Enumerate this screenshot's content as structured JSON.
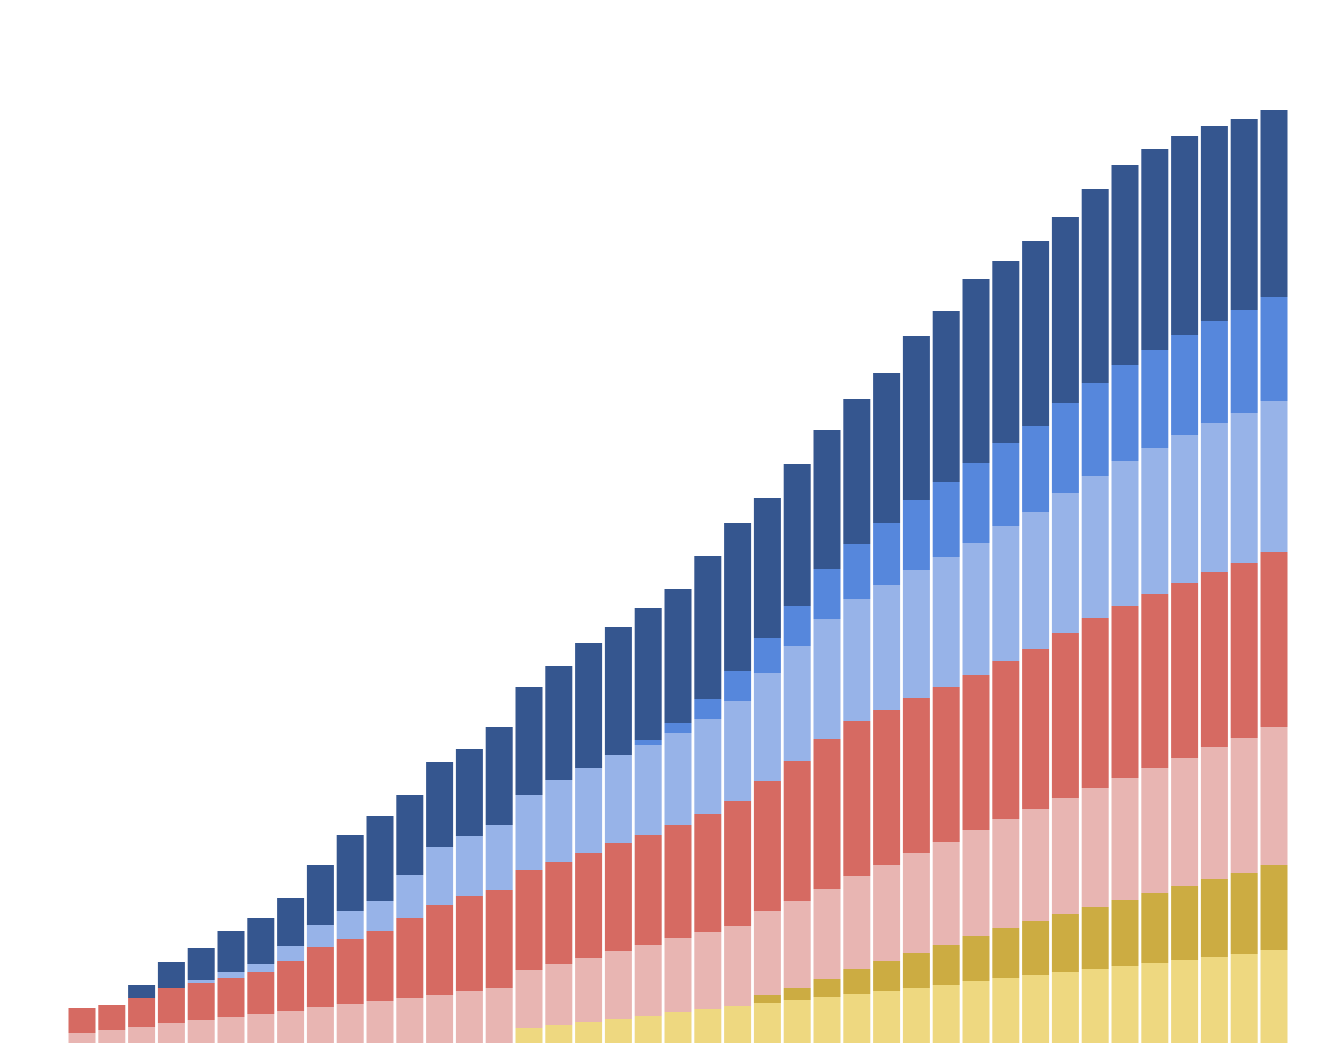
{
  "chart_data": {
    "type": "stacked-bar",
    "ylim": [
      0,
      100
    ],
    "grid": false,
    "series": [
      {
        "color": "#eed880",
        "values": [
          0,
          0,
          0,
          0,
          0,
          0,
          0,
          0,
          0,
          0,
          0,
          0,
          0,
          0,
          0,
          1.5,
          1.8,
          2.1,
          2.4,
          2.7,
          3.1,
          3.4,
          3.7,
          4.0,
          4.3,
          4.6,
          4.9,
          5.2,
          5.5,
          5.8,
          6.2,
          6.5,
          6.8,
          7.1,
          7.4,
          7.7,
          8.0,
          8.3,
          8.6,
          8.9,
          9.3
        ]
      },
      {
        "color": "#ccac42",
        "values": [
          0,
          0,
          0,
          0,
          0,
          0,
          0,
          0,
          0,
          0,
          0,
          0,
          0,
          0,
          0,
          0,
          0,
          0,
          0,
          0,
          0,
          0,
          0,
          0.8,
          1.2,
          1.8,
          2.5,
          3.0,
          3.5,
          4.0,
          4.5,
          5.0,
          5.4,
          5.8,
          6.2,
          6.6,
          7.0,
          7.4,
          7.8,
          8.1,
          8.5
        ]
      },
      {
        "color": "#e8b5b2",
        "values": [
          1.0,
          1.3,
          1.6,
          2.0,
          2.3,
          2.6,
          2.9,
          3.2,
          3.6,
          3.9,
          4.2,
          4.5,
          4.8,
          5.2,
          5.5,
          5.8,
          6.1,
          6.4,
          6.8,
          7.1,
          7.4,
          7.7,
          8.0,
          8.4,
          8.7,
          9.0,
          9.3,
          9.6,
          10.0,
          10.3,
          10.6,
          10.9,
          11.2,
          11.6,
          11.9,
          12.2,
          12.5,
          12.8,
          13.2,
          13.5,
          13.8
        ]
      },
      {
        "color": "#d66a62",
        "values": [
          2.5,
          2.5,
          2.9,
          3.5,
          3.7,
          3.9,
          4.2,
          5.0,
          6.0,
          6.5,
          7.0,
          8.0,
          9.0,
          9.5,
          9.8,
          10.0,
          10.2,
          10.5,
          10.8,
          11.0,
          11.3,
          11.8,
          12.5,
          13.0,
          14.0,
          15.0,
          15.5,
          15.5,
          15.5,
          15.5,
          15.5,
          15.8,
          16.0,
          16.5,
          17.0,
          17.2,
          17.4,
          17.5,
          17.5,
          17.5,
          17.5
        ]
      },
      {
        "color": "#97b3e8",
        "values": [
          0,
          0,
          0,
          0,
          0.3,
          0.6,
          0.8,
          1.5,
          2.2,
          2.8,
          3.0,
          4.3,
          5.8,
          6.0,
          6.5,
          7.5,
          8.2,
          8.5,
          8.8,
          9.0,
          9.2,
          9.5,
          10.0,
          10.8,
          11.5,
          12.0,
          12.2,
          12.5,
          12.8,
          13.0,
          13.2,
          13.5,
          13.7,
          14.0,
          14.2,
          14.5,
          14.6,
          14.8,
          14.9,
          15.0,
          15.1
        ]
      },
      {
        "color": "#5687dc",
        "values": [
          0,
          0,
          0,
          0,
          0,
          0,
          0,
          0,
          0,
          0,
          0,
          0,
          0,
          0,
          0,
          0,
          0,
          0,
          0,
          0.5,
          1.0,
          2.0,
          3.0,
          3.5,
          4.0,
          5.0,
          5.5,
          6.2,
          7.0,
          7.5,
          8.0,
          8.3,
          8.6,
          9.0,
          9.3,
          9.6,
          9.8,
          10.0,
          10.2,
          10.3,
          10.4
        ]
      },
      {
        "color": "#35568f",
        "values": [
          0,
          0,
          1.3,
          2.6,
          3.2,
          4.1,
          4.6,
          4.8,
          6.0,
          7.6,
          8.5,
          8.0,
          8.5,
          8.7,
          9.8,
          10.8,
          11.4,
          12.5,
          12.8,
          13.2,
          13.4,
          14.3,
          14.8,
          14.0,
          14.2,
          13.9,
          14.5,
          15.0,
          16.4,
          17.1,
          18.4,
          18.2,
          18.5,
          18.6,
          19.4,
          20.0,
          20.1,
          19.9,
          19.5,
          19.1,
          18.7
        ]
      }
    ]
  }
}
